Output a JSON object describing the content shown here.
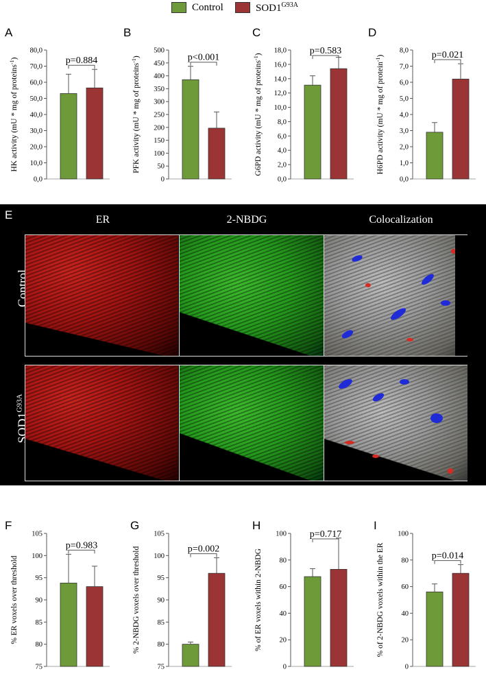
{
  "legend": {
    "items": [
      {
        "label": "Control",
        "color": "#6f9a3a"
      },
      {
        "label": "SOD1",
        "sup": "G93A",
        "color": "#9b3535"
      }
    ]
  },
  "colors": {
    "control": "#6f9a3a",
    "sod1": "#9b3535",
    "microscopy_bg": "#000000"
  },
  "microscopy": {
    "letter": "E",
    "columns": [
      "ER",
      "2-NBDG",
      "Colocalization"
    ],
    "rows": [
      {
        "label": "Control",
        "sup": ""
      },
      {
        "label": "SOD1",
        "sup": "G93A"
      }
    ]
  },
  "chart_data": [
    {
      "letter": "A",
      "type": "bar",
      "categories": [
        "Control",
        "SOD1G93A"
      ],
      "values": [
        53.0,
        56.5
      ],
      "errors": [
        12.0,
        11.5
      ],
      "ylabel": "HK activity (mU * mg of proteins",
      "ylabel_sup": "-1",
      "ylabel_close": ")",
      "ylim": [
        0,
        80
      ],
      "yticks": [
        "0,0",
        "10,0",
        "20,0",
        "30,0",
        "40,0",
        "50,0",
        "60,0",
        "70,0",
        "80,0"
      ],
      "pvalue": "p=0.884"
    },
    {
      "letter": "B",
      "type": "bar",
      "categories": [
        "Control",
        "SOD1G93A"
      ],
      "values": [
        385,
        197
      ],
      "errors": [
        52,
        63
      ],
      "ylabel": "PFK activity (mU * mg of proteins",
      "ylabel_sup": "-1",
      "ylabel_close": ")",
      "ylim": [
        0,
        500
      ],
      "yticks": [
        "0",
        "50",
        "100",
        "150",
        "200",
        "250",
        "300",
        "350",
        "400",
        "450",
        "500"
      ],
      "pvalue": "p<0.001"
    },
    {
      "letter": "C",
      "type": "bar",
      "categories": [
        "Control",
        "SOD1G93A"
      ],
      "values": [
        13.1,
        15.4
      ],
      "errors": [
        1.3,
        1.6
      ],
      "ylabel": "G6PD activity (mU * mg of proteins",
      "ylabel_sup": "-1",
      "ylabel_close": ")",
      "ylim": [
        0,
        18
      ],
      "yticks": [
        "0,0",
        "2,0",
        "4,0",
        "6,0",
        "8,0",
        "10,0",
        "12,0",
        "14,0",
        "16,0",
        "18,0"
      ],
      "pvalue": "p=0.583"
    },
    {
      "letter": "D",
      "type": "bar",
      "categories": [
        "Control",
        "SOD1G93A"
      ],
      "values": [
        2.9,
        6.2
      ],
      "errors": [
        0.6,
        0.95
      ],
      "ylabel": "H6PD activity (mU * mg of protein",
      "ylabel_sup": "-1",
      "ylabel_close": ")",
      "ylim": [
        0,
        8
      ],
      "yticks": [
        "0,0",
        "1,0",
        "2,0",
        "3,0",
        "4,0",
        "5,0",
        "6,0",
        "7,0",
        "8,0"
      ],
      "pvalue": "p=0.021"
    },
    {
      "letter": "F",
      "type": "bar",
      "categories": [
        "Control",
        "SOD1G93A"
      ],
      "values": [
        93.8,
        93.0
      ],
      "errors": [
        6.5,
        4.6
      ],
      "ylabel": "% ER voxels over threshold",
      "ylabel_sup": "",
      "ylabel_close": "",
      "ylim": [
        75,
        105
      ],
      "yticks": [
        "75",
        "80",
        "85",
        "90",
        "95",
        "100",
        "105"
      ],
      "pvalue": "p=0.983"
    },
    {
      "letter": "G",
      "type": "bar",
      "categories": [
        "Control",
        "SOD1G93A"
      ],
      "values": [
        80.0,
        96.0
      ],
      "errors": [
        0.5,
        3.5
      ],
      "ylabel": "% 2-NBDG voxels over threshold",
      "ylabel_sup": "",
      "ylabel_close": "",
      "ylim": [
        75,
        105
      ],
      "yticks": [
        "75",
        "80",
        "85",
        "90",
        "95",
        "100",
        "105"
      ],
      "pvalue": "p=0.002"
    },
    {
      "letter": "H",
      "type": "bar",
      "categories": [
        "Control",
        "SOD1G93A"
      ],
      "values": [
        67.5,
        73.0
      ],
      "errors": [
        6.0,
        23.5
      ],
      "ylabel": "% of ER voxels within 2-NBDG",
      "ylabel_sup": "",
      "ylabel_close": "",
      "ylim": [
        0,
        100
      ],
      "yticks": [
        "0",
        "20",
        "40",
        "60",
        "80",
        "100"
      ],
      "pvalue": "p=0.717"
    },
    {
      "letter": "I",
      "type": "bar",
      "categories": [
        "Control",
        "SOD1G93A"
      ],
      "values": [
        56.0,
        70.0
      ],
      "errors": [
        6.0,
        6.5
      ],
      "ylabel": "% of 2-NBDG voxels within the ER",
      "ylabel_sup": "",
      "ylabel_close": "",
      "ylim": [
        0,
        100
      ],
      "yticks": [
        "0",
        "20",
        "40",
        "60",
        "80",
        "100"
      ],
      "pvalue": "p=0.014"
    }
  ]
}
